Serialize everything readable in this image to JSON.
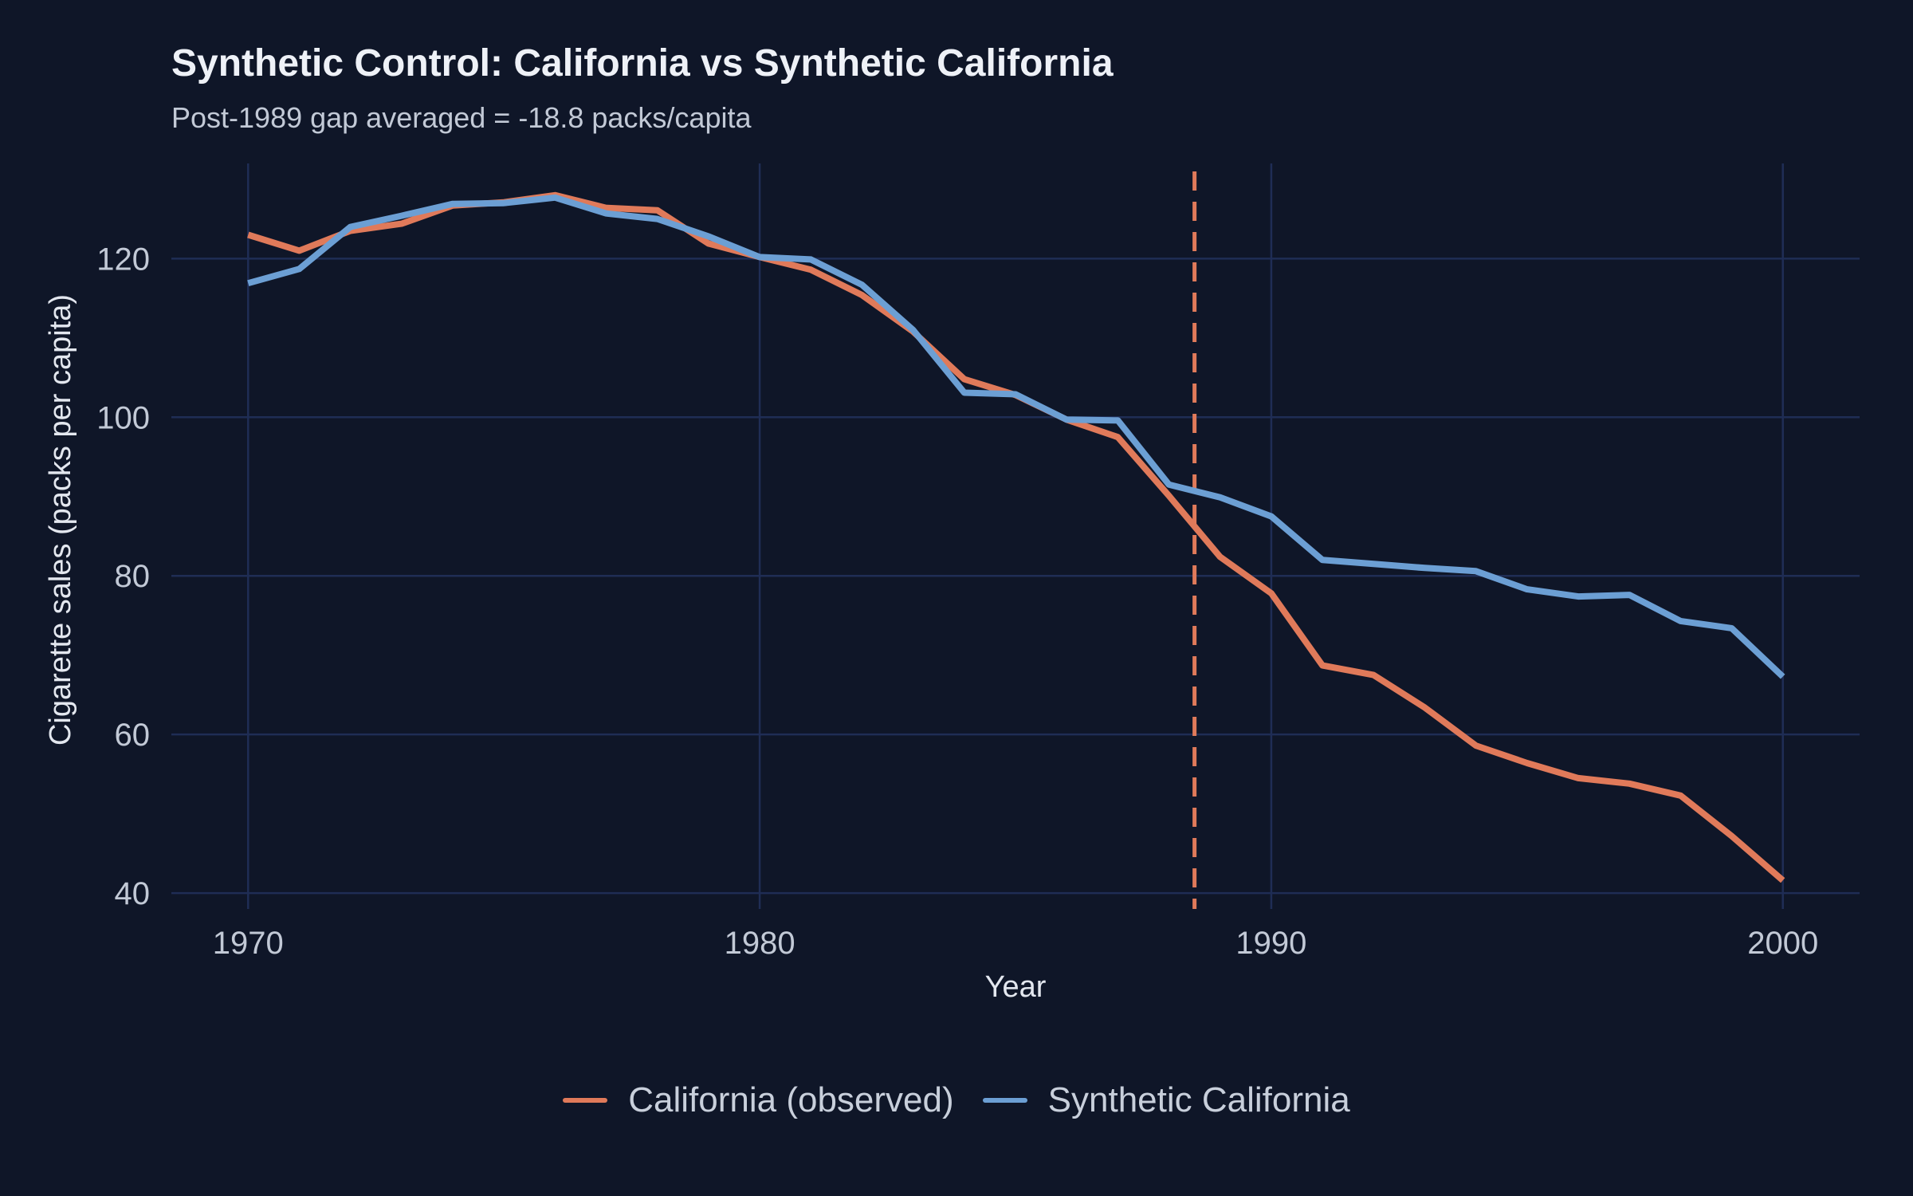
{
  "chart_data": {
    "type": "line",
    "title": "Synthetic Control: California vs Synthetic California",
    "subtitle": "Post-1989 gap averaged = -18.8 packs/capita",
    "xlabel": "Year",
    "ylabel": "Cigarette sales (packs per capita)",
    "xlim": [
      1968.5,
      2001.5
    ],
    "ylim": [
      38,
      132
    ],
    "x_ticks": [
      1970,
      1980,
      1990,
      2000
    ],
    "y_ticks": [
      40,
      60,
      80,
      100,
      120
    ],
    "x_tick_labels": [
      "1970",
      "1980",
      "1990",
      "2000"
    ],
    "y_tick_labels": [
      "40",
      "60",
      "80",
      "100",
      "120"
    ],
    "grid": true,
    "legend_position": "bottom",
    "treatment_line": {
      "x": 1988.5,
      "style": "dashed",
      "color": "#e07a5a"
    },
    "x": [
      1970,
      1971,
      1972,
      1973,
      1974,
      1975,
      1976,
      1977,
      1978,
      1979,
      1980,
      1981,
      1982,
      1983,
      1984,
      1985,
      1986,
      1987,
      1988,
      1989,
      1990,
      1991,
      1992,
      1993,
      1994,
      1995,
      1996,
      1997,
      1998,
      1999,
      2000
    ],
    "series": [
      {
        "name": "California (observed)",
        "color": "#e07a5a",
        "values": [
          123.0,
          121.0,
          123.5,
          124.4,
          126.7,
          127.1,
          128.0,
          126.4,
          126.1,
          121.9,
          120.2,
          118.6,
          115.4,
          110.8,
          104.8,
          102.8,
          99.7,
          97.5,
          90.1,
          82.4,
          77.8,
          68.7,
          67.5,
          63.4,
          58.6,
          56.4,
          54.5,
          53.8,
          52.3,
          47.2,
          41.6
        ]
      },
      {
        "name": "Synthetic California",
        "color": "#6c9fd4",
        "values": [
          116.9,
          118.7,
          124.0,
          125.4,
          126.9,
          127.0,
          127.7,
          125.7,
          125.0,
          122.8,
          120.2,
          119.9,
          116.7,
          111.0,
          103.1,
          102.9,
          99.7,
          99.6,
          91.5,
          89.9,
          87.5,
          82.0,
          81.5,
          81.0,
          80.6,
          78.3,
          77.4,
          77.6,
          74.3,
          73.4,
          67.3
        ]
      }
    ]
  },
  "legend": {
    "items": [
      {
        "label": "California (observed)",
        "color": "#e07a5a"
      },
      {
        "label": "Synthetic California",
        "color": "#6c9fd4"
      }
    ]
  }
}
